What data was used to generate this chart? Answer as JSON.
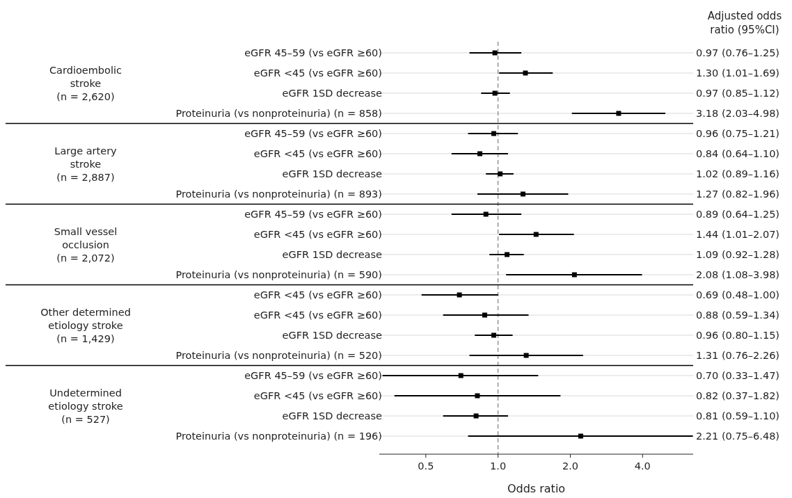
{
  "chart_data": {
    "type": "scatter",
    "orientation": "horizontal",
    "log": "x",
    "marker": "square",
    "grid": "y",
    "color": "#000000",
    "xlabel": "Odds ratio",
    "xlim": [
      0.32,
      6.5
    ],
    "xticks": [
      0.5,
      {
        "value": 1,
        "label": "1.0"
      },
      {
        "value": 2,
        "label": "2.0"
      },
      {
        "value": 4,
        "label": "4.0"
      }
    ],
    "categories": [
      "eGFR 45–59 (vs eGFR ≥60)",
      "eGFR <45 (vs eGFR ≥60)",
      "eGFR 1SD decrease",
      "Proteinuria (vs nonproteinuria) (n = 858)",
      "eGFR 45–59 (vs eGFR ≥60)",
      "eGFR <45 (vs eGFR ≥60)",
      "eGFR 1SD decrease",
      "Proteinuria (vs nonproteinuria) (n = 893)",
      "eGFR 45–59 (vs eGFR ≥60)",
      "eGFR <45 (vs eGFR ≥60)",
      "eGFR 1SD decrease",
      "Proteinuria (vs nonproteinuria) (n = 590)",
      "eGFR <45 (vs eGFR ≥60)",
      "eGFR <45 (vs eGFR ≥60)",
      "eGFR 1SD decrease",
      "Proteinuria (vs nonproteinuria) (n = 520)",
      "eGFR 45–59 (vs eGFR ≥60)",
      "eGFR <45 (vs eGFR ≥60)",
      "eGFR 1SD decrease",
      "Proteinuria (vs nonproteinuria) (n = 196)"
    ],
    "values": [
      0.97,
      1.3,
      0.97,
      3.18,
      0.96,
      0.84,
      1.02,
      1.27,
      0.89,
      1.44,
      1.09,
      2.08,
      0.69,
      0.88,
      0.96,
      1.31,
      0.7,
      0.82,
      0.81,
      2.21
    ],
    "errors": [
      [
        0.76,
        1.25
      ],
      [
        1.01,
        1.69
      ],
      [
        0.85,
        1.12
      ],
      [
        2.03,
        4.98
      ],
      [
        0.75,
        1.21
      ],
      [
        0.64,
        1.1
      ],
      [
        0.89,
        1.16
      ],
      [
        0.82,
        1.96
      ],
      [
        0.64,
        1.25
      ],
      [
        1.01,
        2.07
      ],
      [
        0.92,
        1.28
      ],
      [
        1.08,
        3.98
      ],
      [
        0.48,
        1.0
      ],
      [
        0.59,
        1.34
      ],
      [
        0.8,
        1.15
      ],
      [
        0.76,
        2.26
      ],
      [
        0.33,
        1.47
      ],
      [
        0.37,
        1.82
      ],
      [
        0.59,
        1.1
      ],
      [
        0.75,
        6.48
      ]
    ],
    "value_labels": [
      "0.97 (0.76–1.25)",
      "1.30 (1.01–1.69)",
      "0.97 (0.85–1.12)",
      "3.18 (2.03–4.98)",
      "0.96 (0.75–1.21)",
      "0.84 (0.64–1.10)",
      "1.02 (0.89–1.16)",
      "1.27 (0.82–1.96)",
      "0.89 (0.64–1.25)",
      "1.44 (1.01–2.07)",
      "1.09 (0.92–1.28)",
      "2.08 (1.08–3.98)",
      "0.69 (0.48–1.00)",
      "0.88 (0.59–1.34)",
      "0.96 (0.80–1.15)",
      "1.31 (0.76–2.26)",
      "0.70 (0.33–1.47)",
      "0.82 (0.37–1.82)",
      "0.81 (0.59–1.10)",
      "2.21 (0.75–6.48)"
    ],
    "ref_lines": [
      {
        "axis": "x",
        "value": 1,
        "line_style": "dashed",
        "color": "#666666"
      }
    ],
    "annotations": [
      "Adjusted odds\nratio (95%CI)",
      "Cardioembolic\nstroke\n(n = 2,620)",
      "Large artery\nstroke\n(n = 2,887)",
      "Small vessel\nocclusion\n(n = 2,072)",
      "Other determined\netiology stroke\n(n = 1,429)",
      "Undetermined\netiology stroke\n(n = 527)"
    ]
  }
}
